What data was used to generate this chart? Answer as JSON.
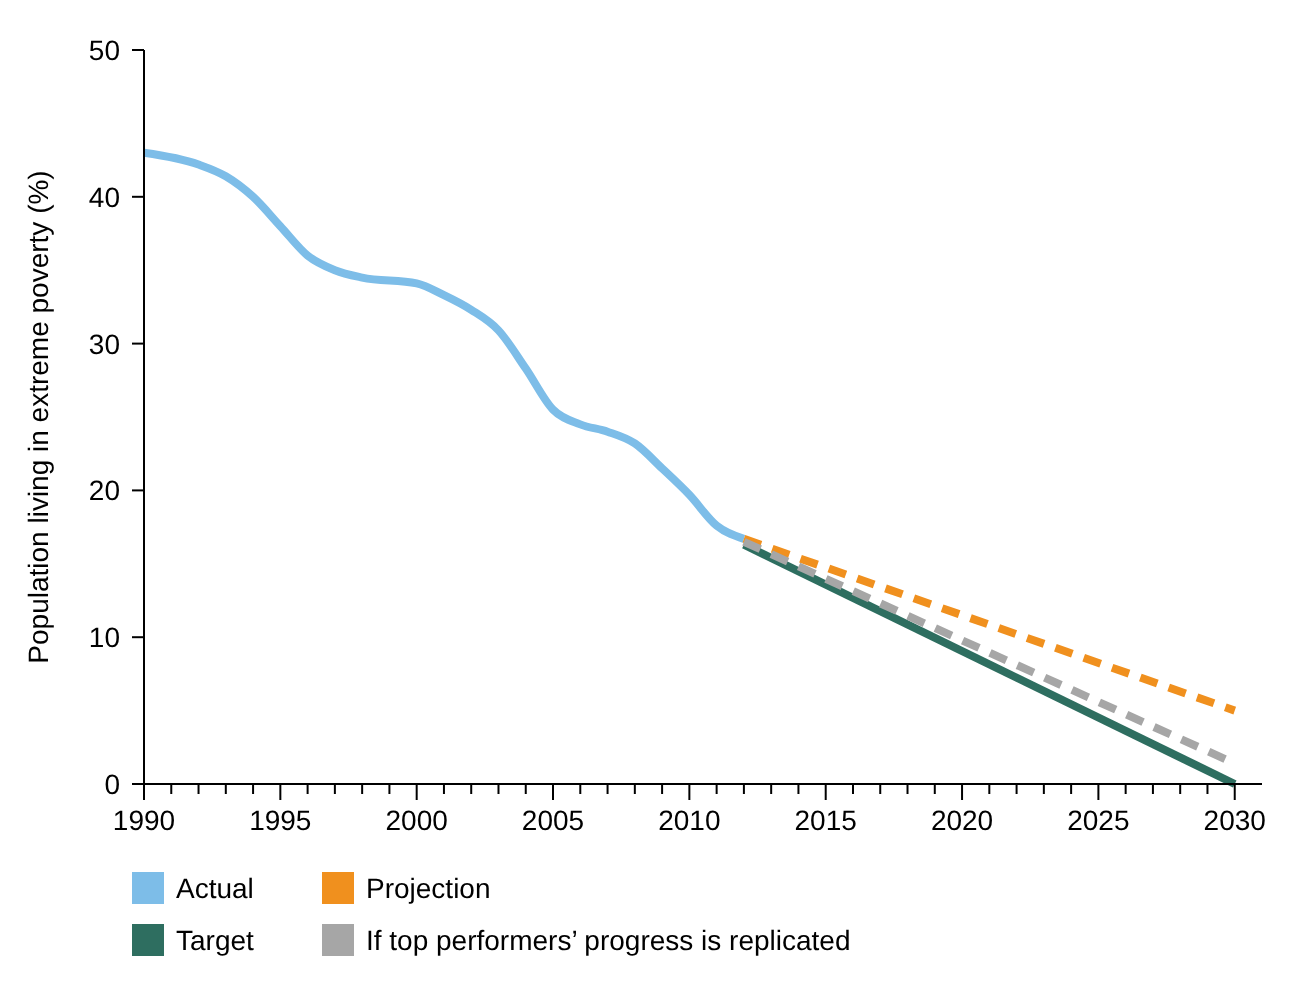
{
  "chart_data": {
    "type": "line",
    "ylabel": "Population living in extreme poverty (%)",
    "xlim": [
      1990,
      2031
    ],
    "ylim": [
      0,
      50
    ],
    "xticks": [
      1990,
      {
        "value": 1991,
        "label": null
      },
      {
        "value": 1992,
        "label": null
      },
      {
        "value": 1993,
        "label": null
      },
      {
        "value": 1994,
        "label": null
      },
      1995,
      {
        "value": 1996,
        "label": null
      },
      {
        "value": 1997,
        "label": null
      },
      {
        "value": 1998,
        "label": null
      },
      {
        "value": 1999,
        "label": null
      },
      2000,
      {
        "value": 2001,
        "label": null
      },
      {
        "value": 2002,
        "label": null
      },
      {
        "value": 2003,
        "label": null
      },
      {
        "value": 2004,
        "label": null
      },
      2005,
      {
        "value": 2006,
        "label": null
      },
      {
        "value": 2007,
        "label": null
      },
      {
        "value": 2008,
        "label": null
      },
      {
        "value": 2009,
        "label": null
      },
      2010,
      {
        "value": 2011,
        "label": null
      },
      {
        "value": 2012,
        "label": null
      },
      {
        "value": 2013,
        "label": null
      },
      {
        "value": 2014,
        "label": null
      },
      2015,
      {
        "value": 2016,
        "label": null
      },
      {
        "value": 2017,
        "label": null
      },
      {
        "value": 2018,
        "label": null
      },
      {
        "value": 2019,
        "label": null
      },
      2020,
      {
        "value": 2021,
        "label": null
      },
      {
        "value": 2022,
        "label": null
      },
      {
        "value": 2023,
        "label": null
      },
      {
        "value": 2024,
        "label": null
      },
      2025,
      {
        "value": 2026,
        "label": null
      },
      {
        "value": 2027,
        "label": null
      },
      {
        "value": 2028,
        "label": null
      },
      {
        "value": 2029,
        "label": null
      },
      2030
    ],
    "yticks": [
      0,
      10,
      20,
      30,
      40,
      50
    ],
    "grid": false,
    "legend": "bottom",
    "marker": "none",
    "series": [
      {
        "name": "Actual",
        "color": "#7dbde8",
        "line_style": "solid",
        "x": [
          1990,
          1992,
          1993,
          1994,
          1995,
          1996,
          1997,
          1998,
          2000,
          2001,
          2002,
          2003,
          2004,
          2005,
          2006,
          2007,
          2008,
          2009,
          2010,
          2011,
          2012
        ],
        "values": [
          43,
          42.2,
          41.4,
          40,
          38,
          36,
          35,
          34.5,
          34.1,
          33.3,
          32.3,
          30.9,
          28.3,
          25.5,
          24.5,
          24,
          23.2,
          21.5,
          19.7,
          17.6,
          16.7
        ]
      },
      {
        "name": "Projection",
        "color": "#f0901e",
        "line_style": "dashed",
        "x": [
          2012,
          2030
        ],
        "values": [
          16.7,
          5
        ]
      },
      {
        "name": "Target",
        "color": "#2e6e60",
        "line_style": "solid",
        "x": [
          2012,
          2030
        ],
        "values": [
          16.3,
          0
        ]
      },
      {
        "name": "If top performers’ progress is replicated",
        "color": "#a6a6a6",
        "line_style": "dashed",
        "x": [
          2012,
          2030
        ],
        "values": [
          16.5,
          1.4
        ]
      }
    ]
  }
}
